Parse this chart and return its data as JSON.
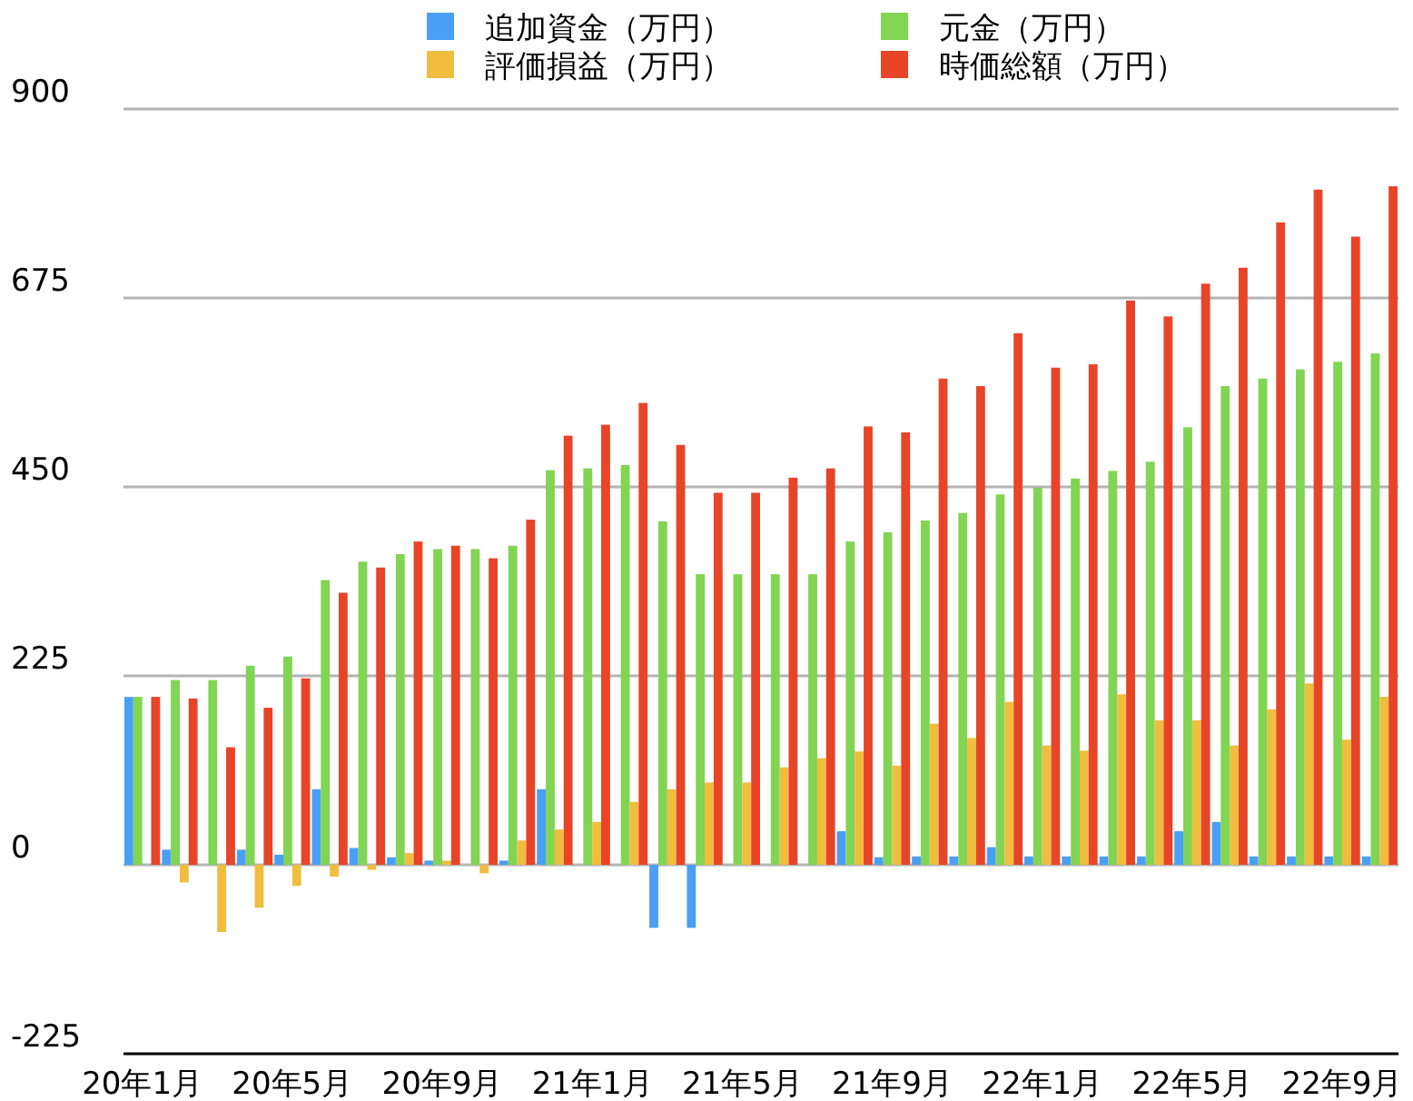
{
  "chart_data": {
    "type": "bar",
    "categories": [
      "20年1月",
      null,
      null,
      null,
      "20年5月",
      null,
      null,
      null,
      "20年9月",
      null,
      null,
      null,
      "21年1月",
      null,
      null,
      null,
      "21年5月",
      null,
      null,
      null,
      "21年9月",
      null,
      null,
      null,
      "22年1月",
      null,
      null,
      null,
      "22年5月",
      null,
      null,
      null,
      "22年9月",
      null
    ],
    "series": [
      {
        "name": "追加資金（万円）",
        "color": "#4a9ff5",
        "values": [
          200,
          18,
          0,
          18,
          12,
          90,
          20,
          9,
          5,
          0,
          5,
          90,
          0,
          0,
          -75,
          -75,
          0,
          0,
          0,
          40,
          9,
          10,
          10,
          21,
          10,
          10,
          10,
          10,
          40,
          51,
          10,
          10,
          10,
          10
        ]
      },
      {
        "name": "元金（万円）",
        "color": "#82d453",
        "values": [
          200,
          220,
          220,
          237,
          248,
          339,
          361,
          370,
          376,
          376,
          380,
          470,
          472,
          476,
          409,
          346,
          346,
          346,
          346,
          385,
          396,
          410,
          419,
          441,
          449,
          460,
          469,
          480,
          521,
          570,
          579,
          590,
          599,
          609
        ]
      },
      {
        "name": "評価損益（万円）",
        "color": "#f0bd3e",
        "values": [
          0,
          -21,
          -80,
          -51,
          -25,
          -14,
          -6,
          14,
          5,
          -10,
          29,
          42,
          51,
          75,
          90,
          98,
          98,
          116,
          127,
          135,
          118,
          168,
          151,
          194,
          142,
          136,
          203,
          172,
          172,
          142,
          185,
          216,
          149,
          200
        ]
      },
      {
        "name": "時価総額（万円）",
        "color": "#e84428",
        "values": [
          200,
          198,
          140,
          187,
          222,
          324,
          354,
          385,
          380,
          365,
          411,
          511,
          524,
          550,
          500,
          443,
          443,
          461,
          472,
          522,
          515,
          579,
          570,
          633,
          592,
          596,
          672,
          653,
          692,
          711,
          765,
          804,
          748,
          808
        ]
      }
    ],
    "ylim": [
      -225,
      900
    ],
    "yticks": [
      -225,
      0,
      225,
      450,
      675,
      900
    ],
    "grid": "y",
    "legend": "top"
  }
}
